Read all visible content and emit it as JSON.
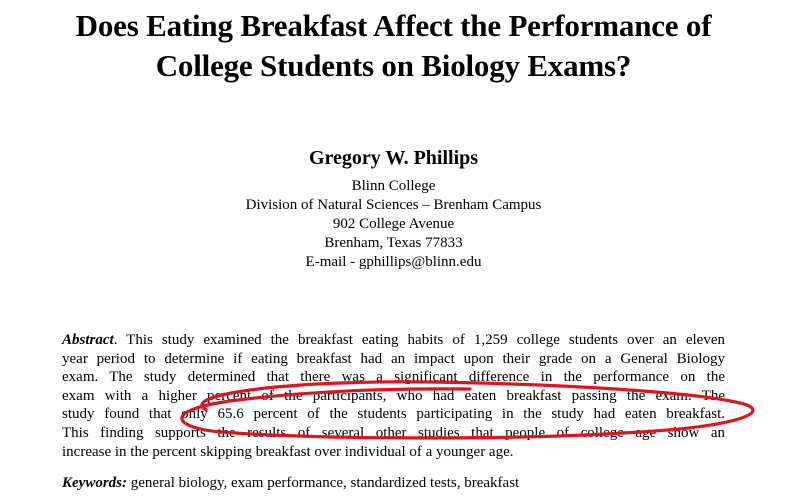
{
  "paper": {
    "title_line1": "Does Eating Breakfast Affect the Performance of",
    "title_line2": "College Students on Biology Exams?",
    "author": "Gregory W. Phillips",
    "affiliation": {
      "institution": "Blinn College",
      "division": "Division of Natural Sciences – Brenham Campus",
      "street": "902 College Avenue",
      "city": "Brenham, Texas 77833",
      "email_label": "E-mail -",
      "email": "gphillips@blinn.edu"
    },
    "abstract": {
      "label": "Abstract",
      "label_punct": ".",
      "lines": [
        "  This study examined the breakfast eating habits of 1,259 college students over an eleven",
        "year period to determine if eating breakfast had an impact upon their grade on a General Biology",
        "exam.  The study determined that there was a significant difference in the performance on the",
        "exam with a higher percent of the participants, who had eaten breakfast passing the exam.  The",
        "study found that only 65.6 percent of the students participating in the study had eaten breakfast.",
        "This finding supports the results of several other studies that people of college age show an",
        "increase in the percent skipping breakfast over individual of a younger age."
      ]
    },
    "keywords": {
      "label": "Keywords:",
      "text": " general biology, exam performance, standardized tests, breakfast"
    }
  },
  "annotation": {
    "color": "#e0141e"
  }
}
